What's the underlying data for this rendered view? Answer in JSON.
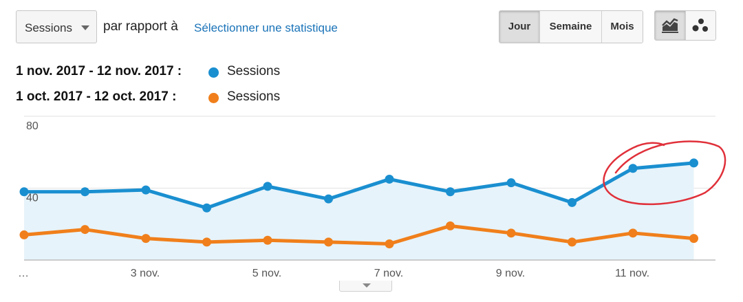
{
  "toolbar": {
    "metric_select": "Sessions",
    "compare_text": "par rapport à",
    "select_stat_link": "Sélectionner une statistique",
    "period_buttons": [
      "Jour",
      "Semaine",
      "Mois"
    ],
    "active_period": "Jour",
    "view_icons": [
      "line-chart-icon",
      "motion-chart-icon"
    ]
  },
  "legend": [
    {
      "range": "1 nov. 2017 - 12 nov. 2017 :",
      "series": "Sessions",
      "color": "#1a8fd0"
    },
    {
      "range": "1 oct. 2017 - 12 oct. 2017 :",
      "series": "Sessions",
      "color": "#f07f1b"
    }
  ],
  "chart_data": {
    "type": "line",
    "x": [
      "1 nov.",
      "2 nov.",
      "3 nov.",
      "4 nov.",
      "5 nov.",
      "6 nov.",
      "7 nov.",
      "8 nov.",
      "9 nov.",
      "10 nov.",
      "11 nov.",
      "12 nov."
    ],
    "x_tick_labels": [
      "…",
      "3 nov.",
      "5 nov.",
      "7 nov.",
      "9 nov.",
      "11 nov."
    ],
    "y_ticks": [
      "80",
      "40"
    ],
    "ylim": [
      0,
      80
    ],
    "grid": true,
    "series": [
      {
        "name": "1 nov. 2017 - 12 nov. 2017 : Sessions",
        "color": "#1a8fd0",
        "values": [
          38,
          38,
          39,
          29,
          41,
          34,
          45,
          38,
          43,
          32,
          51,
          54
        ],
        "area": true
      },
      {
        "name": "1 oct. 2017 - 12 oct. 2017 : Sessions",
        "color": "#f07f1b",
        "values": [
          14,
          17,
          12,
          10,
          11,
          10,
          9,
          19,
          15,
          10,
          15,
          12
        ]
      }
    ],
    "annotation": {
      "type": "hand-drawn circle",
      "color": "#e0303a",
      "around": [
        "11 nov.",
        "12 nov."
      ]
    }
  }
}
